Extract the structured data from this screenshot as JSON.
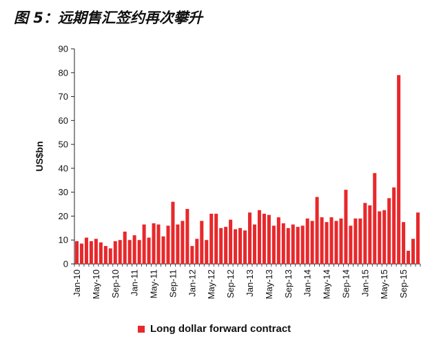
{
  "figure_title": "图 5：远期售汇签约再次攀升",
  "colors": {
    "bar": "#e8282b",
    "axis": "#222222"
  },
  "chart_data": {
    "type": "bar",
    "ylabel": "US$bn",
    "ylim": [
      0,
      90
    ],
    "yticks": [
      0,
      10,
      20,
      30,
      40,
      50,
      60,
      70,
      80,
      90
    ],
    "x_tick_labels": [
      "Jan-10",
      "May-10",
      "Sep-10",
      "Jan-11",
      "May-11",
      "Sep-11",
      "Jan-12",
      "May-12",
      "Sep-12",
      "Jan-13",
      "May-13",
      "Sep-13",
      "Jan-14",
      "May-14",
      "Sep-14",
      "Jan-15",
      "May-15",
      "Sep-15"
    ],
    "x_tick_every": 4,
    "categories": [
      "Jan-10",
      "Feb-10",
      "Mar-10",
      "Apr-10",
      "May-10",
      "Jun-10",
      "Jul-10",
      "Aug-10",
      "Sep-10",
      "Oct-10",
      "Nov-10",
      "Dec-10",
      "Jan-11",
      "Feb-11",
      "Mar-11",
      "Apr-11",
      "May-11",
      "Jun-11",
      "Jul-11",
      "Aug-11",
      "Sep-11",
      "Oct-11",
      "Nov-11",
      "Dec-11",
      "Jan-12",
      "Feb-12",
      "Mar-12",
      "Apr-12",
      "May-12",
      "Jun-12",
      "Jul-12",
      "Aug-12",
      "Sep-12",
      "Oct-12",
      "Nov-12",
      "Dec-12",
      "Jan-13",
      "Feb-13",
      "Mar-13",
      "Apr-13",
      "May-13",
      "Jun-13",
      "Jul-13",
      "Aug-13",
      "Sep-13",
      "Oct-13",
      "Nov-13",
      "Dec-13",
      "Jan-14",
      "Feb-14",
      "Mar-14",
      "Apr-14",
      "May-14",
      "Jun-14",
      "Jul-14",
      "Aug-14",
      "Sep-14",
      "Oct-14",
      "Nov-14",
      "Dec-14",
      "Jan-15",
      "Feb-15",
      "Mar-15",
      "Apr-15",
      "May-15",
      "Jun-15",
      "Jul-15",
      "Aug-15",
      "Sep-15",
      "Oct-15",
      "Nov-15",
      "Dec-15"
    ],
    "series": [
      {
        "name": "Long dollar forward contract",
        "values": [
          9.5,
          8.5,
          11,
          9.5,
          10.5,
          9,
          7.5,
          6.5,
          9.5,
          10,
          13.5,
          10,
          12,
          10,
          16.5,
          11,
          17,
          16.5,
          11.5,
          16,
          26,
          16.5,
          18,
          23,
          7.5,
          10.5,
          18,
          10,
          21,
          21,
          15,
          15.5,
          18.5,
          14.5,
          15,
          14,
          21.5,
          16.5,
          22.5,
          21,
          20.5,
          16,
          19.5,
          17,
          15,
          16.5,
          15.5,
          16,
          19,
          18,
          28,
          19.5,
          17.5,
          19.5,
          18,
          19,
          31,
          16,
          19,
          19,
          25.5,
          24.5,
          38,
          22,
          22.5,
          27.5,
          32,
          79,
          17.5,
          5.5,
          10.5,
          21.5
        ]
      }
    ],
    "legend_position": "bottom",
    "grid": false
  }
}
